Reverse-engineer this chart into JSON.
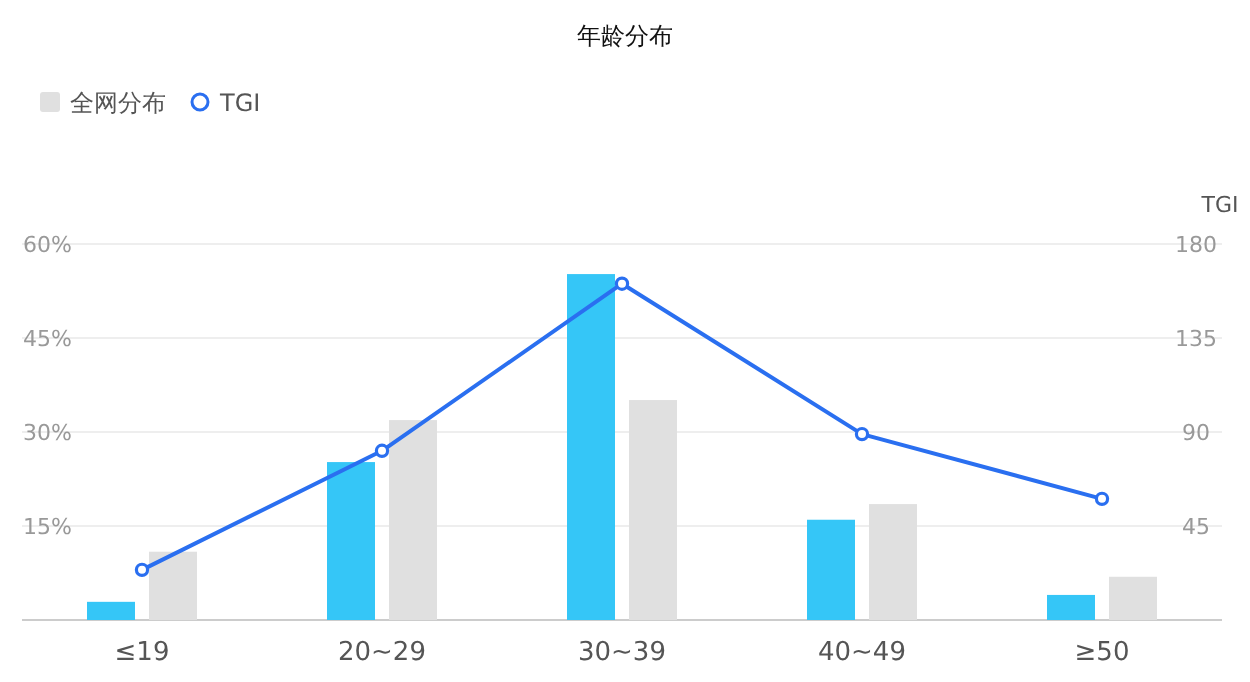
{
  "chart_data": {
    "type": "bar",
    "title": "年龄分布",
    "y2label": "TGI",
    "categories": [
      "≤19",
      "20~29",
      "30~39",
      "40~49",
      "≥50"
    ],
    "series": [
      {
        "color": "#35c6f7",
        "values": [
          2.9,
          25.2,
          55.2,
          16,
          4
        ]
      },
      {
        "name": "全网分布",
        "color": "#e0e0e0",
        "values": [
          10.9,
          31.9,
          35.1,
          18.5,
          6.9
        ]
      },
      {
        "name": "TGI",
        "type": "line",
        "axis": "y2",
        "color": "#2a6ff0",
        "values": [
          24,
          81,
          161,
          89,
          58
        ]
      }
    ],
    "ylim": [
      0,
      60
    ],
    "yticks": [
      {
        "value": 15,
        "label": "15%"
      },
      {
        "value": 30,
        "label": "30%"
      },
      {
        "value": 45,
        "label": "45%"
      },
      {
        "value": 60,
        "label": "60%"
      }
    ],
    "y2lim": [
      0,
      180
    ],
    "y2ticks": [
      45,
      90,
      135,
      180
    ],
    "grid": "y",
    "legend": "top left",
    "marker": "circle"
  }
}
